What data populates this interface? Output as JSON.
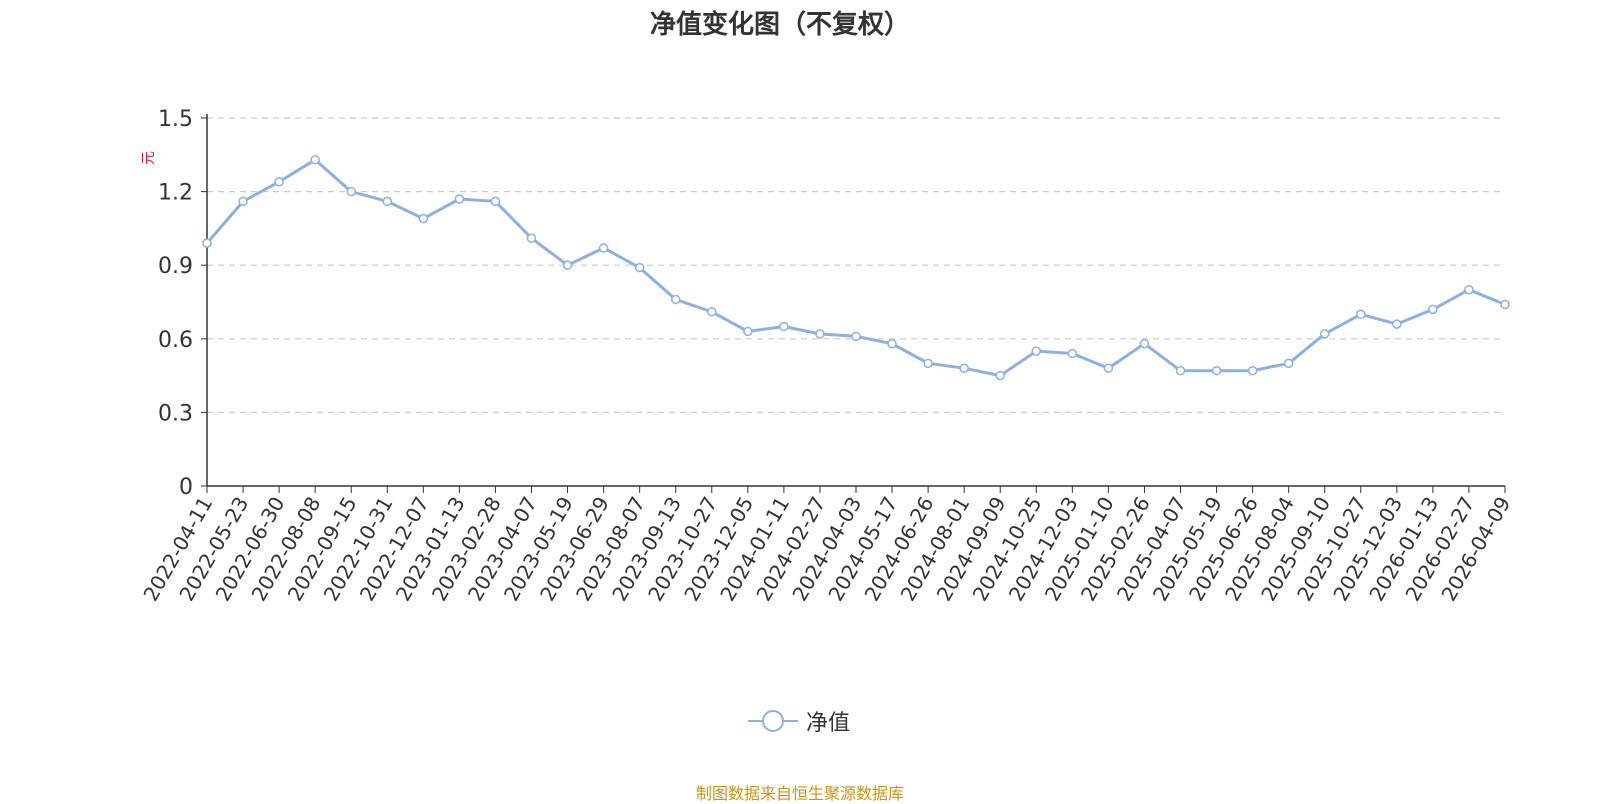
{
  "chart_data": {
    "type": "line",
    "title": "净值变化图（不复权）",
    "ylabel": "元",
    "ylim": [
      0,
      1.5
    ],
    "yticks": [
      "0",
      "0.3",
      "0.6",
      "0.9",
      "1.2",
      "1.5"
    ],
    "grid": true,
    "legend_position": "bottom-center",
    "categories": [
      "2022-04-11",
      "2022-05-23",
      "2022-06-30",
      "2022-08-08",
      "2022-09-15",
      "2022-10-31",
      "2022-12-07",
      "2023-01-13",
      "2023-02-28",
      "2023-04-07",
      "2023-05-19",
      "2023-06-29",
      "2023-08-07",
      "2023-09-13",
      "2023-10-27",
      "2023-12-05",
      "2024-01-11",
      "2024-02-27",
      "2024-04-03",
      "2024-05-17",
      "2024-06-26",
      "2024-08-01",
      "2024-09-09",
      "2024-10-25",
      "2024-12-03",
      "2025-01-10",
      "2025-02-26",
      "2025-04-07",
      "2025-05-19",
      "2025-06-26",
      "2025-08-04",
      "2025-09-10",
      "2025-10-27",
      "2025-12-03",
      "2026-01-13",
      "2026-02-27",
      "2026-04-09"
    ],
    "series": [
      {
        "name": "净值",
        "color": "#8eb0dc",
        "values": [
          0.99,
          1.16,
          1.24,
          1.33,
          1.2,
          1.16,
          1.09,
          1.17,
          1.16,
          1.01,
          0.9,
          0.97,
          0.89,
          0.76,
          0.71,
          0.63,
          0.65,
          0.62,
          0.61,
          0.58,
          0.5,
          0.48,
          0.45,
          0.55,
          0.54,
          0.48,
          0.58,
          0.47,
          0.47,
          0.47,
          0.5,
          0.62,
          0.7,
          0.66,
          0.72,
          0.8,
          0.74
        ]
      }
    ]
  },
  "legend": {
    "label": "净值"
  },
  "source": "制图数据来自恒生聚源数据库"
}
